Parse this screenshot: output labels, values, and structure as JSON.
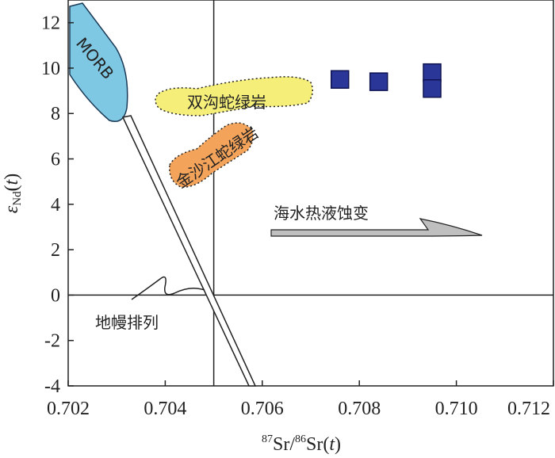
{
  "chart_data": {
    "type": "scatter",
    "xlabel": "87Sr/86Sr(t)",
    "ylabel": "εNd(t)",
    "xlim": [
      0.702,
      0.712
    ],
    "ylim": [
      -4,
      13
    ],
    "x_ticks": [
      "0.702",
      "0.704",
      "0.706",
      "0.708",
      "0.710",
      "0.712"
    ],
    "y_ticks": [
      "12",
      "10",
      "8",
      "6",
      "4",
      "2",
      "0",
      "-2",
      "-4"
    ],
    "reference_lines": {
      "bulk_earth_x": 0.705,
      "chur_y": 0
    },
    "fields": [
      {
        "label": "MORB",
        "color": "#7ec8e3"
      },
      {
        "label": "双沟蛇绿岩",
        "color": "#f5ef7a"
      },
      {
        "label": "金沙江蛇绿岩",
        "color": "#f4a35a"
      }
    ],
    "annotations": {
      "mantle_array": "地幔排列",
      "seawater_alteration": "海水热液蚀变"
    },
    "series": [
      {
        "marker": "square",
        "color": "#2b3699",
        "points": [
          {
            "x": 0.7076,
            "y": 9.5
          },
          {
            "x": 0.7084,
            "y": 9.4
          },
          {
            "x": 0.7095,
            "y": 9.8
          },
          {
            "x": 0.7095,
            "y": 9.1
          }
        ]
      }
    ]
  }
}
